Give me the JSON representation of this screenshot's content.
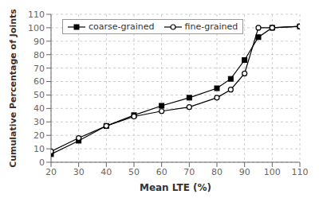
{
  "chart_data": {
    "type": "line",
    "x": [
      20,
      30,
      40,
      50,
      60,
      70,
      80,
      85,
      90,
      95,
      100,
      110
    ],
    "series": [
      {
        "name": "coarse-grained",
        "color": "black",
        "marker": "square",
        "values": [
          6,
          16,
          27,
          35,
          42,
          48,
          55,
          62,
          76,
          93,
          100,
          101
        ]
      },
      {
        "name": "fine-grained",
        "color": "black",
        "marker": "circle",
        "values": [
          8,
          18,
          27,
          34,
          38,
          41,
          48,
          54,
          66,
          100,
          100,
          101
        ]
      }
    ],
    "xlabel": "Mean LTE (%)",
    "ylabel": "Cumulative Percentage of Joints",
    "xlim": [
      20,
      110
    ],
    "ylim": [
      0,
      110
    ],
    "xticks": [
      20,
      30,
      40,
      50,
      60,
      70,
      80,
      90,
      100,
      110
    ],
    "yticks": [
      0,
      10,
      20,
      30,
      40,
      50,
      60,
      70,
      80,
      90,
      100,
      110
    ],
    "grid": true,
    "legend": "upper left"
  }
}
